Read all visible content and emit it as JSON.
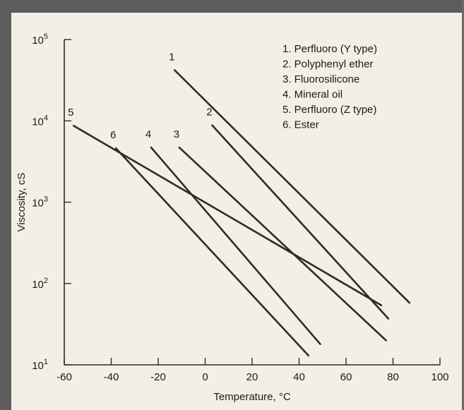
{
  "chart_data": {
    "type": "line",
    "xlabel": "Temperature, °C",
    "ylabel": "Viscosity, cS",
    "xlim": [
      -60,
      100
    ],
    "ylim_log10": [
      1,
      5
    ],
    "y_scale": "log",
    "x_ticks": [
      "-60",
      "-40",
      "-20",
      "0",
      "20",
      "40",
      "60",
      "80",
      "100"
    ],
    "y_ticks": [
      {
        "base": "10",
        "exp": "1"
      },
      {
        "base": "10",
        "exp": "2"
      },
      {
        "base": "10",
        "exp": "3"
      },
      {
        "base": "10",
        "exp": "4"
      },
      {
        "base": "10",
        "exp": "5"
      }
    ],
    "legend": [
      "1.  Perfluoro (Y type)",
      "2.  Polyphenyl ether",
      "3.  Fluorosilicone",
      "4.  Mineral oil",
      "5.  Perfluoro (Z type)",
      "6.  Ester"
    ],
    "series": [
      {
        "label": "1",
        "x": [
          -13,
          87
        ],
        "y": [
          42000,
          58
        ]
      },
      {
        "label": "2",
        "x": [
          3,
          78
        ],
        "y": [
          8800,
          37
        ]
      },
      {
        "label": "3",
        "x": [
          -11,
          77
        ],
        "y": [
          4700,
          20
        ]
      },
      {
        "label": "4",
        "x": [
          -23,
          49
        ],
        "y": [
          4700,
          18
        ]
      },
      {
        "label": "5",
        "x": [
          -56,
          75
        ],
        "y": [
          8700,
          54
        ]
      },
      {
        "label": "6",
        "x": [
          -38,
          44
        ],
        "y": [
          4600,
          13
        ]
      }
    ],
    "grid": false,
    "line_color": "#2b2b2b"
  }
}
